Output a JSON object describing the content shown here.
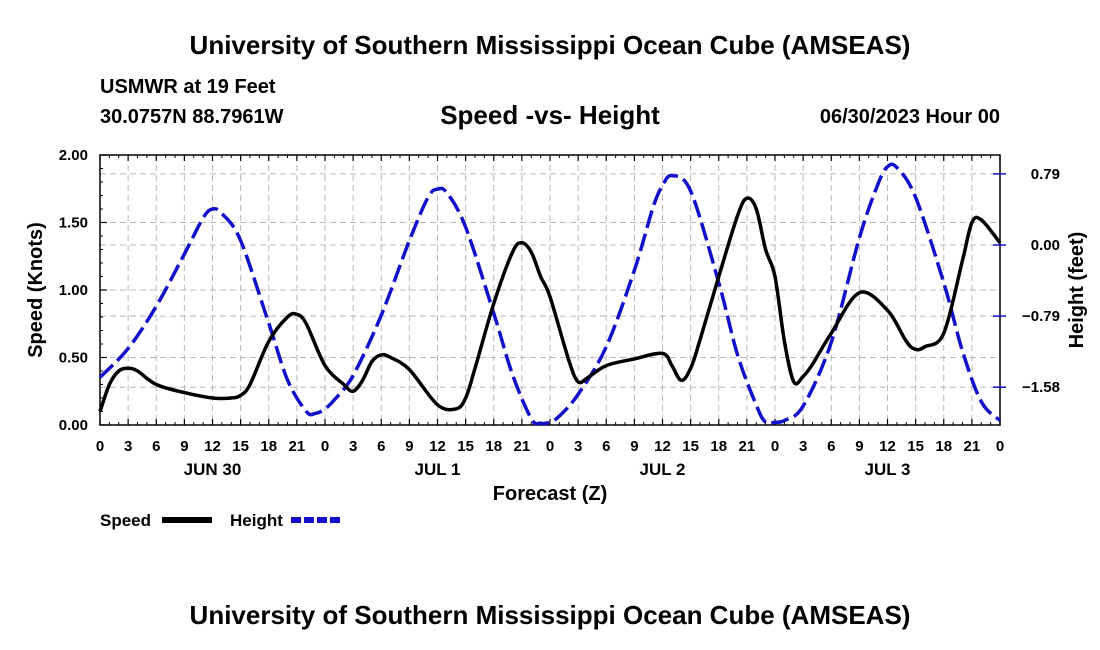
{
  "header": {
    "title": "University of Southern Mississippi Ocean Cube (AMSEAS)",
    "station": "USMWR at 19 Feet",
    "coords": "30.0757N  88.7961W",
    "date": "06/30/2023 Hour 00",
    "footer_title": "University of Southern Mississippi Ocean Cube (AMSEAS)"
  },
  "chart_data": {
    "type": "line",
    "title": "Speed -vs- Height",
    "xlabel": "Forecast (Z)",
    "ylabel": "Speed (Knots)",
    "y2label": "Height (feet)",
    "xlim": [
      0,
      96
    ],
    "ylim": [
      0,
      2.0
    ],
    "y2lim": [
      -2.0,
      1.0
    ],
    "x_ticks": [
      0,
      3,
      6,
      9,
      12,
      15,
      18,
      21,
      24,
      27,
      30,
      33,
      36,
      39,
      42,
      45,
      48,
      51,
      54,
      57,
      60,
      63,
      66,
      69,
      72,
      75,
      78,
      81,
      84,
      87,
      90,
      93,
      96
    ],
    "x_tick_labels": [
      "0",
      "3",
      "6",
      "9",
      "12",
      "15",
      "18",
      "21",
      "0",
      "3",
      "6",
      "9",
      "12",
      "15",
      "18",
      "21",
      "0",
      "3",
      "6",
      "9",
      "12",
      "15",
      "18",
      "21",
      "0",
      "3",
      "6",
      "9",
      "12",
      "15",
      "18",
      "21",
      "0"
    ],
    "y_ticks": [
      {
        "value": 0.0,
        "label": "0.00"
      },
      {
        "value": 0.5,
        "label": "0.50"
      },
      {
        "value": 1.0,
        "label": "1.00"
      },
      {
        "value": 1.5,
        "label": "1.50"
      },
      {
        "value": 2.0,
        "label": "2.00"
      }
    ],
    "y2_ticks": [
      {
        "value": 0.79,
        "label": "0.79"
      },
      {
        "value": 0.0,
        "label": "0.00"
      },
      {
        "value": -0.79,
        "label": "−0.79"
      },
      {
        "value": -1.58,
        "label": "−1.58"
      }
    ],
    "day_labels": [
      {
        "x": 12,
        "label": "JUN 30"
      },
      {
        "x": 36,
        "label": "JUL 1"
      },
      {
        "x": 60,
        "label": "JUL 2"
      },
      {
        "x": 84,
        "label": "JUL 3"
      }
    ],
    "grid": true,
    "legend_position": "bottom-left",
    "series": [
      {
        "name": "Speed",
        "color": "#000000",
        "axis": "left",
        "style": "solid",
        "x": [
          0,
          1,
          2,
          3,
          4,
          6,
          9,
          12,
          14,
          15,
          16,
          18,
          20,
          21,
          22,
          24,
          26,
          27,
          28,
          29,
          30,
          31,
          33,
          36,
          38,
          39,
          40,
          42,
          44,
          45,
          46,
          47,
          48,
          50,
          51,
          52,
          54,
          57,
          60,
          61,
          62,
          63,
          64,
          66,
          68,
          69,
          70,
          71,
          72,
          73,
          74,
          75,
          76,
          78,
          81,
          84,
          86,
          87,
          88,
          90,
          92,
          93,
          94,
          96
        ],
        "values": [
          0.1,
          0.3,
          0.4,
          0.42,
          0.4,
          0.3,
          0.24,
          0.2,
          0.2,
          0.22,
          0.3,
          0.62,
          0.8,
          0.82,
          0.75,
          0.44,
          0.3,
          0.25,
          0.33,
          0.47,
          0.52,
          0.5,
          0.41,
          0.15,
          0.12,
          0.2,
          0.42,
          0.9,
          1.28,
          1.35,
          1.28,
          1.1,
          0.95,
          0.48,
          0.32,
          0.35,
          0.44,
          0.49,
          0.53,
          0.44,
          0.33,
          0.42,
          0.63,
          1.1,
          1.55,
          1.68,
          1.6,
          1.3,
          1.1,
          0.62,
          0.32,
          0.36,
          0.45,
          0.68,
          0.98,
          0.85,
          0.62,
          0.56,
          0.58,
          0.68,
          1.22,
          1.5,
          1.52,
          1.35
        ]
      },
      {
        "name": "Height",
        "color": "#1111cc",
        "axis": "right",
        "style": "dashed",
        "x": [
          0,
          3,
          6,
          9,
          11,
          12,
          13,
          15,
          18,
          20,
          22,
          23,
          24,
          25,
          27,
          30,
          33,
          35,
          36,
          37,
          39,
          42,
          44,
          46,
          47,
          48,
          49,
          51,
          54,
          57,
          59,
          60,
          61,
          63,
          66,
          68,
          70,
          71,
          72,
          73,
          75,
          78,
          81,
          83,
          84,
          85,
          87,
          90,
          92,
          94,
          96
        ],
        "values": [
          -1.47,
          -1.15,
          -0.68,
          -0.1,
          0.3,
          0.4,
          0.35,
          0.05,
          -0.87,
          -1.5,
          -1.85,
          -1.87,
          -1.82,
          -1.72,
          -1.45,
          -0.78,
          0.05,
          0.53,
          0.62,
          0.58,
          0.2,
          -0.76,
          -1.44,
          -1.93,
          -1.98,
          -1.97,
          -1.9,
          -1.66,
          -1.13,
          -0.28,
          0.42,
          0.66,
          0.77,
          0.6,
          -0.42,
          -1.22,
          -1.78,
          -1.97,
          -1.97,
          -1.95,
          -1.79,
          -1.08,
          0.08,
          0.68,
          0.87,
          0.86,
          0.53,
          -0.42,
          -1.18,
          -1.74,
          -1.95
        ]
      }
    ]
  }
}
